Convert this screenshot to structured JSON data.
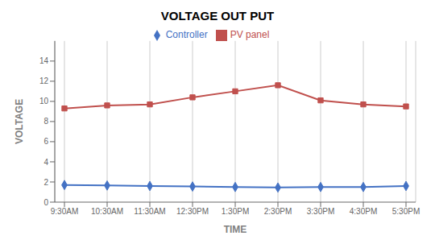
{
  "chart_data": {
    "type": "line",
    "title": "VOLTAGE OUT PUT",
    "xlabel": "TIME",
    "ylabel": "VOLTAGE",
    "categories": [
      "9:30AM",
      "10:30AM",
      "11:30AM",
      "12:30PM",
      "1:30PM",
      "2:30PM",
      "3:30PM",
      "4:30PM",
      "5:30PM"
    ],
    "series": [
      {
        "name": "Controller",
        "color": "#4472C4",
        "marker": "diamond",
        "values": [
          1.7,
          1.65,
          1.6,
          1.55,
          1.5,
          1.45,
          1.5,
          1.5,
          1.6
        ]
      },
      {
        "name": "PV panel",
        "color": "#C0504D",
        "marker": "square",
        "values": [
          9.3,
          9.6,
          9.7,
          10.4,
          11.0,
          11.6,
          10.1,
          9.7,
          9.5
        ]
      }
    ],
    "ylim": [
      0,
      16
    ],
    "yticks": [
      0,
      2,
      4,
      6,
      8,
      10,
      12,
      14
    ],
    "grid": "x",
    "legend": "top"
  }
}
